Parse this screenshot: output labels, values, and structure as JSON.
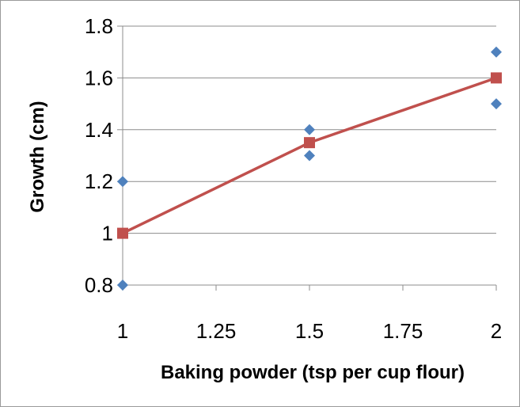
{
  "chart_data": {
    "type": "scatter",
    "title": "",
    "xlabel": "Baking powder (tsp per cup flour)",
    "ylabel": "Growth (cm)",
    "xlim": [
      1,
      2
    ],
    "ylim": [
      0.8,
      1.8
    ],
    "x_ticks": [
      "1",
      "1.25",
      "1.5",
      "1.75",
      "2"
    ],
    "y_ticks": [
      "0.8",
      "1",
      "1.2",
      "1.4",
      "1.6",
      "1.8"
    ],
    "x_tick_values": [
      1,
      1.25,
      1.5,
      1.75,
      2
    ],
    "y_tick_values": [
      0.8,
      1.0,
      1.2,
      1.4,
      1.6,
      1.8
    ],
    "grid": "horizontal",
    "legend": "none",
    "series": [
      {
        "marker": "diamond",
        "color": "#4f81bd",
        "line": false,
        "points": [
          {
            "x": 1,
            "y": 1.2
          },
          {
            "x": 1,
            "y": 0.8
          },
          {
            "x": 1.5,
            "y": 1.4
          },
          {
            "x": 1.5,
            "y": 1.3
          },
          {
            "x": 2,
            "y": 1.7
          },
          {
            "x": 2,
            "y": 1.5
          }
        ]
      },
      {
        "marker": "square",
        "color": "#c0504d",
        "line": true,
        "points": [
          {
            "x": 1,
            "y": 1.0
          },
          {
            "x": 1.5,
            "y": 1.35
          },
          {
            "x": 2,
            "y": 1.6
          }
        ]
      }
    ]
  },
  "colors": {
    "gridline": "#8c8c8c",
    "axis": "#8c8c8c"
  }
}
